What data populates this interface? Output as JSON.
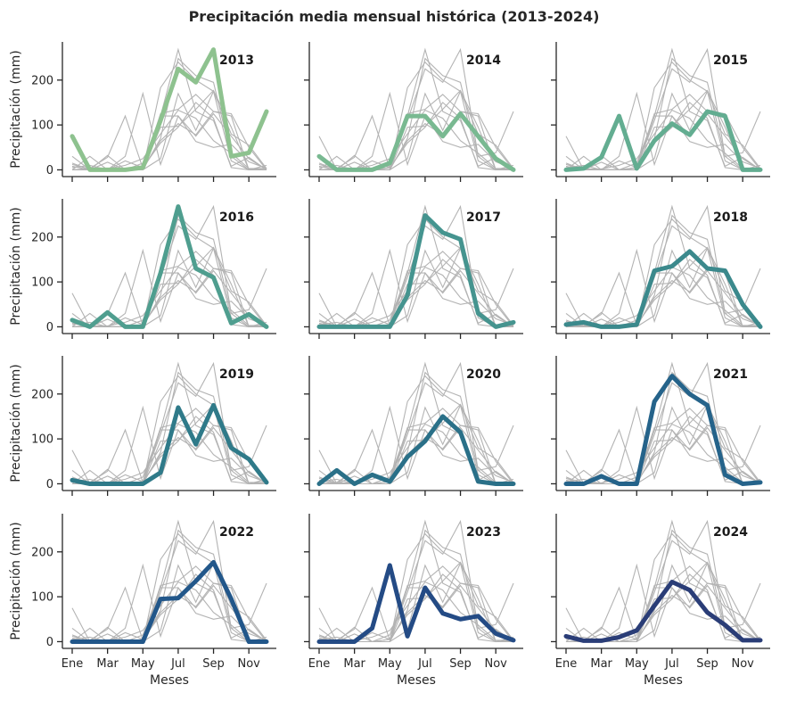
{
  "chart_data": {
    "type": "line",
    "title": "Precipitación media mensual histórica (2013-2024)",
    "xlabel": "Meses",
    "ylabel": "Precipitación (mm)",
    "x_tick_labels": [
      "Ene",
      "Mar",
      "May",
      "Jul",
      "Sep",
      "Nov"
    ],
    "y_ticks": [
      0,
      100,
      200
    ],
    "ylim": [
      -15,
      285
    ],
    "months": [
      1,
      2,
      3,
      4,
      5,
      6,
      7,
      8,
      9,
      10,
      11,
      12
    ],
    "background_color": "#b3b3b3",
    "panels": [
      {
        "label": "2013",
        "color": "#8ec28f",
        "values": [
          75,
          0,
          0,
          0,
          5,
          110,
          225,
          195,
          268,
          30,
          38,
          130
        ]
      },
      {
        "label": "2014",
        "color": "#79b991",
        "values": [
          30,
          0,
          0,
          0,
          15,
          120,
          120,
          75,
          125,
          75,
          25,
          0
        ]
      },
      {
        "label": "2015",
        "color": "#63ad91",
        "values": [
          0,
          3,
          28,
          120,
          3,
          65,
          103,
          78,
          130,
          120,
          0,
          0
        ]
      },
      {
        "label": "2016",
        "color": "#4f9e8f",
        "values": [
          15,
          0,
          32,
          0,
          0,
          120,
          268,
          130,
          110,
          8,
          28,
          0
        ]
      },
      {
        "label": "2017",
        "color": "#45948f",
        "values": [
          0,
          0,
          0,
          0,
          0,
          70,
          248,
          210,
          195,
          30,
          0,
          10
        ]
      },
      {
        "label": "2018",
        "color": "#3b898c",
        "values": [
          5,
          10,
          0,
          0,
          5,
          125,
          135,
          168,
          130,
          125,
          50,
          0
        ]
      },
      {
        "label": "2019",
        "color": "#2f7a89",
        "values": [
          8,
          0,
          0,
          0,
          0,
          25,
          170,
          88,
          175,
          80,
          55,
          3
        ]
      },
      {
        "label": "2020",
        "color": "#2a7088",
        "values": [
          0,
          30,
          0,
          20,
          5,
          60,
          95,
          150,
          115,
          5,
          0,
          0
        ]
      },
      {
        "label": "2021",
        "color": "#25638a",
        "values": [
          0,
          0,
          17,
          0,
          0,
          183,
          240,
          200,
          175,
          20,
          0,
          3
        ]
      },
      {
        "label": "2022",
        "color": "#22578a",
        "values": [
          0,
          0,
          0,
          0,
          0,
          95,
          97,
          135,
          177,
          95,
          0,
          0
        ]
      },
      {
        "label": "2023",
        "color": "#244b85",
        "values": [
          0,
          0,
          0,
          30,
          170,
          12,
          120,
          63,
          50,
          57,
          18,
          3
        ]
      },
      {
        "label": "2024",
        "color": "#2a3d77",
        "values": [
          12,
          2,
          2,
          10,
          25,
          80,
          133,
          115,
          65,
          37,
          3,
          3
        ]
      }
    ]
  }
}
